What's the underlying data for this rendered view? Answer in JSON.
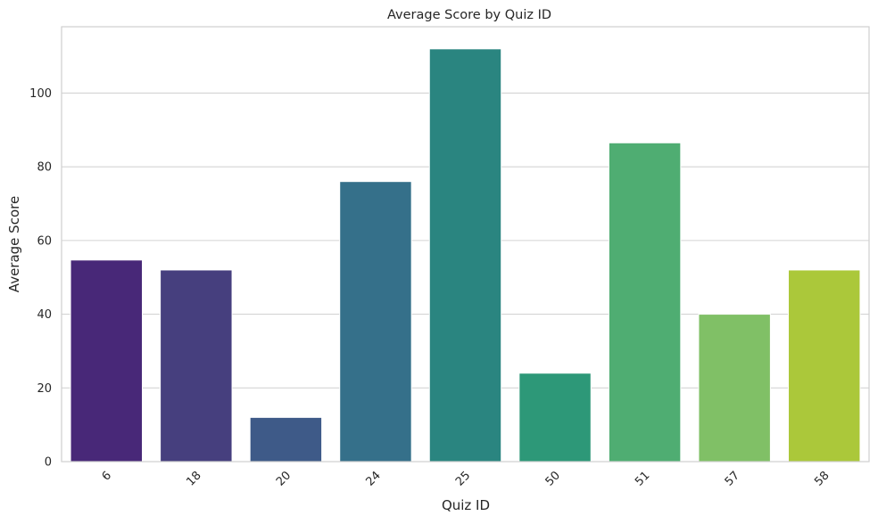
{
  "chart_data": {
    "type": "bar",
    "title": "Average Score by Quiz ID",
    "xlabel": "Quiz ID",
    "ylabel": "Average Score",
    "categories": [
      "6",
      "18",
      "20",
      "24",
      "25",
      "50",
      "51",
      "57",
      "58"
    ],
    "values": [
      54.7,
      52,
      12,
      76,
      112,
      24,
      86.5,
      40,
      52
    ],
    "ylim": [
      0,
      118
    ],
    "yticks": [
      0,
      20,
      40,
      60,
      80,
      100
    ],
    "grid": "horizontal",
    "colors": [
      "#482878",
      "#463f7e",
      "#3e5a88",
      "#35708a",
      "#2a8580",
      "#2d9878",
      "#4fad72",
      "#80c066",
      "#abc83a"
    ]
  }
}
